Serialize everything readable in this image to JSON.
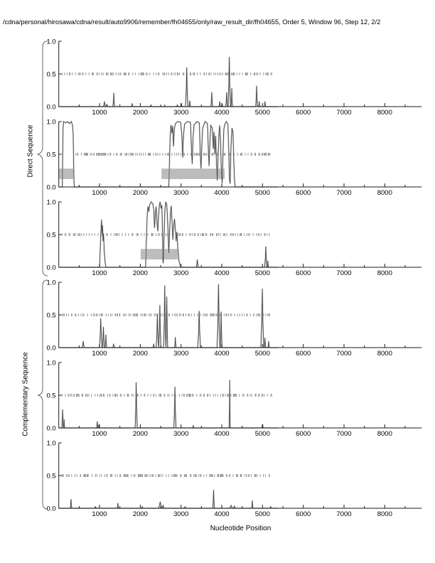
{
  "header": {
    "title": "/cdna/personal/hirosawa/cdna/result/auto9906/remember/fh04655/only/raw_result_dir/fh04655, Order 5, Window 96, Step 12, 2/2"
  },
  "chart_data": {
    "type": "line",
    "title": "/cdna/personal/hirosawa/cdna/result/auto9906/remember/fh04655/only/raw_result_dir/fh04655, Order 5, Window 96, Step 12, 2/2",
    "xlabel": "Nucleotide Position",
    "ylabel": "",
    "xlim": [
      0,
      8905
    ],
    "ylim": [
      0,
      1
    ],
    "grid": false,
    "legend": "none",
    "x_major_ticks": [
      1000,
      2000,
      3000,
      4000,
      5000,
      6000,
      7000,
      8000
    ],
    "x_minor_step": 500,
    "x_minor_max": 8500,
    "y_ticks": [
      {
        "v": 0,
        "label": "0.0"
      },
      {
        "v": 0.5,
        "label": "0.5"
      },
      {
        "v": 1,
        "label": "1.0"
      }
    ],
    "groups": [
      {
        "label": "Direct Sequence",
        "panels": [
          0,
          1,
          2
        ]
      },
      {
        "label": "Complementary Sequence",
        "panels": [
          3,
          4,
          5
        ]
      }
    ],
    "marker_row": {
      "y": 0.5,
      "x_start": 80,
      "x_end": 5230
    },
    "region_bar_y": [
      0.12,
      0.28
    ],
    "colors": {
      "curve": "#404040",
      "curve_echo": "#bfbfbf",
      "bar": "#bcbcbc",
      "axis": "#1a1a1a",
      "dash": "#999999",
      "background": "#ffffff"
    },
    "panels": [
      {
        "name": "direct-1",
        "seed": 11,
        "dash_start": 80,
        "region_bars": [],
        "paths": [],
        "peaks": [
          [
            1120,
            0.08,
            25
          ],
          [
            1180,
            0.04,
            18
          ],
          [
            1350,
            0.21,
            22
          ],
          [
            1800,
            0.05,
            20
          ],
          [
            2260,
            0.03,
            18
          ],
          [
            2600,
            0.02,
            20
          ],
          [
            2910,
            0.03,
            18
          ],
          [
            3010,
            0.05,
            16
          ],
          [
            3140,
            0.6,
            30
          ],
          [
            3215,
            0.09,
            18
          ],
          [
            3755,
            0.22,
            22
          ],
          [
            3950,
            0.08,
            18
          ],
          [
            4010,
            0.04,
            14
          ],
          [
            4120,
            0.22,
            22
          ],
          [
            4185,
            0.76,
            30
          ],
          [
            4245,
            0.28,
            18
          ],
          [
            4855,
            0.32,
            22
          ],
          [
            4920,
            0.08,
            15
          ],
          [
            5060,
            0.08,
            18
          ]
        ]
      },
      {
        "name": "direct-2",
        "seed": 22,
        "dash_start": 420,
        "region_bars": [
          [
            0,
            355
          ],
          [
            2520,
            4070
          ]
        ],
        "paths": [
          [
            [
              88,
              0
            ],
            [
              96,
              0.5
            ],
            [
              104,
              0.88
            ],
            [
              116,
              1.0
            ],
            [
              170,
              0.98
            ],
            [
              215,
              1.0
            ],
            [
              262,
              0.97
            ],
            [
              305,
              1.0
            ],
            [
              335,
              0.95
            ],
            [
              352,
              0.82
            ],
            [
              365,
              0.35
            ],
            [
              374,
              0.08
            ],
            [
              382,
              0
            ]
          ],
          [
            [
              2700,
              0
            ],
            [
              2720,
              0.45
            ],
            [
              2735,
              0.8
            ],
            [
              2755,
              0.95
            ],
            [
              2775,
              0.82
            ],
            [
              2795,
              0.93
            ],
            [
              2815,
              0.62
            ],
            [
              2835,
              0.88
            ],
            [
              2860,
              0.97
            ],
            [
              2920,
              1.0
            ],
            [
              2990,
              0.99
            ],
            [
              3020,
              0.8
            ],
            [
              3040,
              0.45
            ],
            [
              3060,
              0.78
            ],
            [
              3085,
              0.96
            ],
            [
              3150,
              1.0
            ],
            [
              3230,
              0.99
            ],
            [
              3255,
              0.62
            ],
            [
              3275,
              0.35
            ],
            [
              3295,
              0.75
            ],
            [
              3320,
              0.95
            ],
            [
              3390,
              1.0
            ],
            [
              3450,
              0.98
            ],
            [
              3470,
              0.55
            ],
            [
              3490,
              0.28
            ],
            [
              3510,
              0.62
            ],
            [
              3530,
              0.9
            ],
            [
              3590,
              1.0
            ],
            [
              3650,
              0.97
            ],
            [
              3670,
              0.58
            ],
            [
              3690,
              0.32
            ],
            [
              3710,
              0.7
            ],
            [
              3730,
              0.94
            ],
            [
              3770,
              0.9
            ],
            [
              3790,
              0.58
            ],
            [
              3810,
              0.84
            ],
            [
              3830,
              0.5
            ],
            [
              3850,
              0.78
            ],
            [
              3870,
              0.34
            ],
            [
              3890,
              0.1
            ],
            [
              3910,
              0.46
            ],
            [
              3930,
              0.8
            ],
            [
              3950,
              0.94
            ],
            [
              3970,
              0.68
            ],
            [
              3990,
              0.24
            ],
            [
              4010,
              0.06
            ],
            [
              4030,
              0.5
            ],
            [
              4050,
              0.88
            ],
            [
              4075,
              0.96
            ],
            [
              4110,
              1.0
            ],
            [
              4150,
              0.96
            ],
            [
              4175,
              0.5
            ],
            [
              4190,
              0.12
            ],
            [
              4205,
              0.05
            ],
            [
              4225,
              0.6
            ],
            [
              4250,
              0.9
            ],
            [
              4275,
              0.84
            ],
            [
              4295,
              0.4
            ],
            [
              4315,
              0.08
            ],
            [
              4330,
              0
            ]
          ]
        ],
        "peaks": []
      },
      {
        "name": "direct-3",
        "seed": 33,
        "dash_start": 80,
        "region_bars": [
          [
            2010,
            2920
          ]
        ],
        "paths": [
          [
            [
              1000,
              0
            ],
            [
              1015,
              0.25
            ],
            [
              1035,
              0.55
            ],
            [
              1050,
              0.73
            ],
            [
              1060,
              0.52
            ],
            [
              1072,
              0.64
            ],
            [
              1085,
              0.4
            ],
            [
              1098,
              0.52
            ],
            [
              1115,
              0.26
            ],
            [
              1135,
              0.08
            ],
            [
              1158,
              0
            ]
          ],
          [
            [
              2130,
              0
            ],
            [
              2150,
              0.45
            ],
            [
              2170,
              0.8
            ],
            [
              2190,
              0.93
            ],
            [
              2210,
              0.85
            ],
            [
              2230,
              0.95
            ],
            [
              2270,
              1.0
            ],
            [
              2310,
              0.97
            ],
            [
              2330,
              0.88
            ],
            [
              2350,
              0.6
            ],
            [
              2370,
              0.82
            ],
            [
              2390,
              0.93
            ],
            [
              2410,
              0.68
            ],
            [
              2430,
              0.55
            ],
            [
              2450,
              0.8
            ],
            [
              2470,
              0.96
            ],
            [
              2490,
              1.0
            ],
            [
              2510,
              0.9
            ],
            [
              2530,
              0.95
            ],
            [
              2545,
              0.55
            ],
            [
              2555,
              0.12
            ],
            [
              2565,
              0.06
            ],
            [
              2585,
              0.5
            ],
            [
              2605,
              0.88
            ],
            [
              2625,
              1.0
            ],
            [
              2650,
              0.96
            ],
            [
              2670,
              0.72
            ],
            [
              2690,
              0.4
            ],
            [
              2700,
              0.22
            ],
            [
              2720,
              0.55
            ],
            [
              2740,
              0.83
            ],
            [
              2760,
              0.94
            ],
            [
              2780,
              0.68
            ],
            [
              2800,
              0.42
            ],
            [
              2820,
              0.64
            ],
            [
              2840,
              0.74
            ],
            [
              2860,
              0.58
            ],
            [
              2880,
              0.4
            ],
            [
              2900,
              0.54
            ],
            [
              2920,
              0.3
            ],
            [
              2950,
              0.1
            ],
            [
              2975,
              0.04
            ],
            [
              3000,
              0
            ]
          ]
        ],
        "peaks": [
          [
            3400,
            0.12,
            25
          ],
          [
            5080,
            0.32,
            28
          ],
          [
            5130,
            0.1,
            16
          ]
        ]
      },
      {
        "name": "complementary-1",
        "seed": 44,
        "dash_start": 80,
        "region_bars": [],
        "paths": [],
        "peaks": [
          [
            600,
            0.1,
            28
          ],
          [
            1030,
            0.45,
            32
          ],
          [
            1095,
            0.32,
            24
          ],
          [
            1155,
            0.2,
            20
          ],
          [
            1345,
            0.06,
            20
          ],
          [
            2330,
            0.06,
            18
          ],
          [
            2420,
            0.5,
            30
          ],
          [
            2480,
            0.65,
            28
          ],
          [
            2600,
            0.95,
            28
          ],
          [
            2650,
            0.78,
            22
          ],
          [
            2860,
            0.16,
            18
          ],
          [
            3445,
            0.56,
            34
          ],
          [
            3920,
            0.97,
            35
          ],
          [
            3985,
            0.55,
            22
          ],
          [
            4995,
            0.9,
            36
          ],
          [
            5060,
            0.15,
            18
          ],
          [
            5150,
            0.1,
            16
          ]
        ]
      },
      {
        "name": "complementary-2",
        "seed": 55,
        "dash_start": 80,
        "region_bars": [],
        "paths": [],
        "peaks": [
          [
            95,
            0.28,
            20
          ],
          [
            130,
            0.13,
            14
          ],
          [
            945,
            0.1,
            18
          ],
          [
            985,
            0.05,
            14
          ],
          [
            1900,
            0.7,
            26
          ],
          [
            2850,
            0.63,
            26
          ],
          [
            3300,
            0.04,
            16
          ],
          [
            4195,
            0.73,
            12
          ],
          [
            5000,
            0.06,
            16
          ]
        ]
      },
      {
        "name": "complementary-3",
        "seed": 66,
        "dash_start": 80,
        "region_bars": [],
        "paths": [],
        "peaks": [
          [
            300,
            0.14,
            18
          ],
          [
            900,
            0.03,
            20
          ],
          [
            1450,
            0.08,
            18
          ],
          [
            2050,
            0.03,
            16
          ],
          [
            2490,
            0.1,
            45
          ],
          [
            2560,
            0.05,
            22
          ],
          [
            3100,
            0.03,
            16
          ],
          [
            3800,
            0.28,
            20
          ],
          [
            4230,
            0.04,
            40
          ],
          [
            4310,
            0.03,
            28
          ],
          [
            4750,
            0.12,
            16
          ],
          [
            5200,
            0.03,
            16
          ]
        ]
      }
    ]
  }
}
